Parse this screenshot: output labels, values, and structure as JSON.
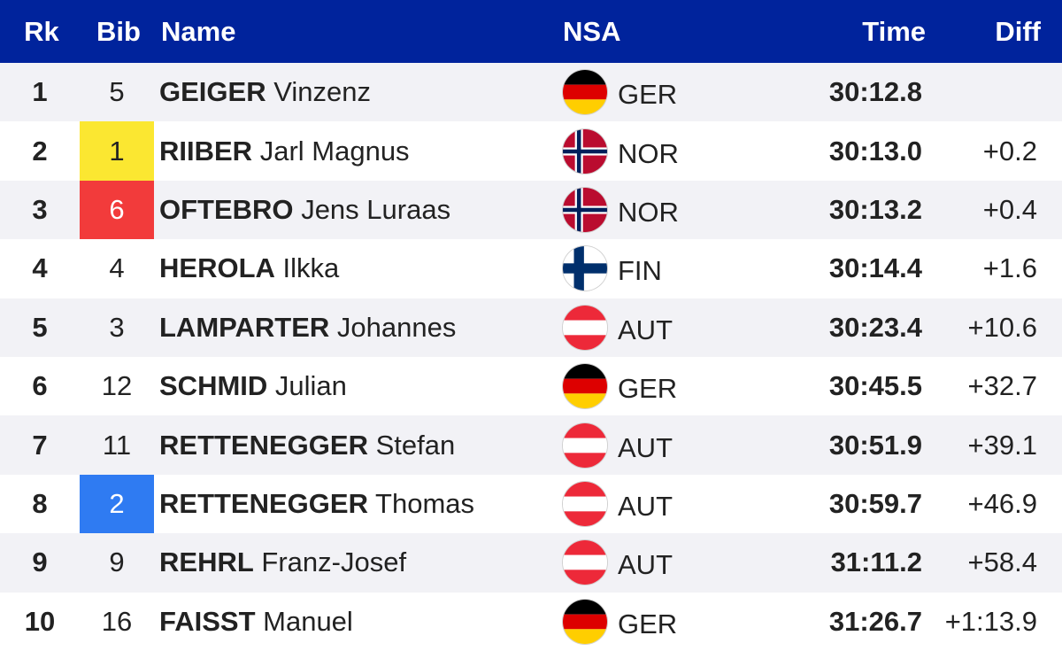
{
  "header": {
    "rank": "Rk",
    "bib": "Bib",
    "name": "Name",
    "nsa": "NSA",
    "time": "Time",
    "diff": "Diff"
  },
  "rows": [
    {
      "rank": "1",
      "bib": "5",
      "bib_color": "none",
      "last": "GEIGER",
      "first": "Vinzenz",
      "nsa": "GER",
      "flag": "germany-flag-icon",
      "time": "30:12.8",
      "diff": ""
    },
    {
      "rank": "2",
      "bib": "1",
      "bib_color": "yellow",
      "last": "RIIBER",
      "first": "Jarl Magnus",
      "nsa": "NOR",
      "flag": "norway-flag-icon",
      "time": "30:13.0",
      "diff": "+0.2"
    },
    {
      "rank": "3",
      "bib": "6",
      "bib_color": "red",
      "last": "OFTEBRO",
      "first": "Jens Luraas",
      "nsa": "NOR",
      "flag": "norway-flag-icon",
      "time": "30:13.2",
      "diff": "+0.4"
    },
    {
      "rank": "4",
      "bib": "4",
      "bib_color": "none",
      "last": "HEROLA",
      "first": "Ilkka",
      "nsa": "FIN",
      "flag": "finland-flag-icon",
      "time": "30:14.4",
      "diff": "+1.6"
    },
    {
      "rank": "5",
      "bib": "3",
      "bib_color": "none",
      "last": "LAMPARTER",
      "first": "Johannes",
      "nsa": "AUT",
      "flag": "austria-flag-icon",
      "time": "30:23.4",
      "diff": "+10.6"
    },
    {
      "rank": "6",
      "bib": "12",
      "bib_color": "none",
      "last": "SCHMID",
      "first": "Julian",
      "nsa": "GER",
      "flag": "germany-flag-icon",
      "time": "30:45.5",
      "diff": "+32.7"
    },
    {
      "rank": "7",
      "bib": "11",
      "bib_color": "none",
      "last": "RETTENEGGER",
      "first": "Stefan",
      "nsa": "AUT",
      "flag": "austria-flag-icon",
      "time": "30:51.9",
      "diff": "+39.1"
    },
    {
      "rank": "8",
      "bib": "2",
      "bib_color": "blue",
      "last": "RETTENEGGER",
      "first": "Thomas",
      "nsa": "AUT",
      "flag": "austria-flag-icon",
      "time": "30:59.7",
      "diff": "+46.9"
    },
    {
      "rank": "9",
      "bib": "9",
      "bib_color": "none",
      "last": "REHRL",
      "first": "Franz-Josef",
      "nsa": "AUT",
      "flag": "austria-flag-icon",
      "time": "31:11.2",
      "diff": "+58.4"
    },
    {
      "rank": "10",
      "bib": "16",
      "bib_color": "none",
      "last": "FAISST",
      "first": "Manuel",
      "nsa": "GER",
      "flag": "germany-flag-icon",
      "time": "31:26.7",
      "diff": "+1:13.9"
    }
  ],
  "colors": {
    "header_bg": "#00239c",
    "bib_yellow": "#fbe731",
    "bib_red": "#f23b3b",
    "bib_blue": "#2f7bf2"
  }
}
